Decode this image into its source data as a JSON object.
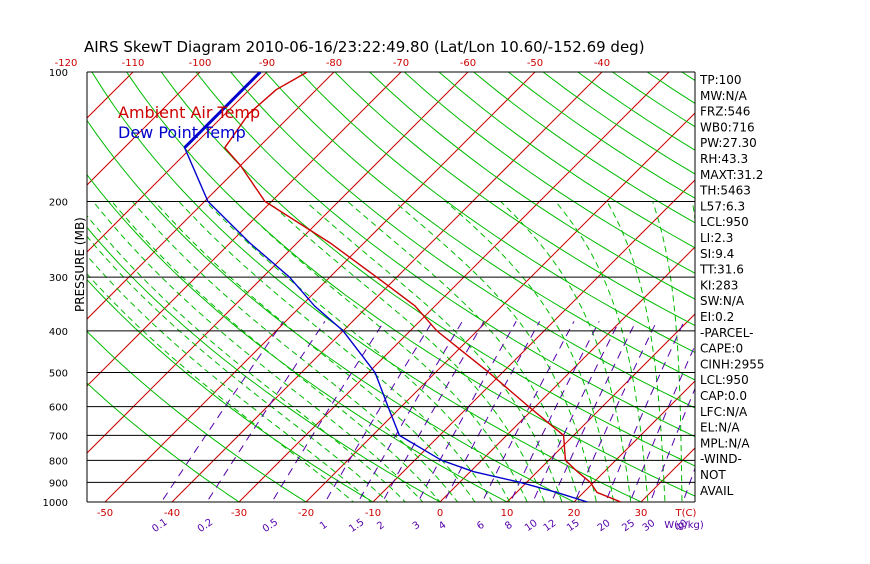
{
  "title": "AIRS SkewT Diagram 2010-06-16/23:22:49.80 (Lat/Lon 10.60/-152.69 deg)",
  "ylabel": "PRESSURE (MB)",
  "xlabel_unit": "T(C)",
  "mix_unit": "W(g/kg)",
  "legend": [
    {
      "label": "Ambient Air Temp",
      "color": "#cc0000"
    },
    {
      "label": "Dew Point Temp",
      "color": "#0000cc"
    }
  ],
  "colors": {
    "temp": "#cc0000",
    "dew": "#0000cc",
    "isotherm": "#cc0000",
    "dry_adiabat": "#00bb00",
    "moist_adiabat": "#00bb00",
    "mixing_ratio": "#5500aa",
    "isobar": "#000000"
  },
  "pressure_ticks": [
    "100",
    "200",
    "300",
    "400",
    "500",
    "600",
    "700",
    "800",
    "900",
    "1000"
  ],
  "top_temp_ticks": [
    "-120",
    "-110",
    "-100",
    "-90",
    "-80",
    "-70",
    "-60",
    "-50",
    "-40"
  ],
  "bottom_temp_ticks": [
    "-50",
    "-40",
    "-30",
    "-20",
    "-10",
    "0",
    "10",
    "20",
    "30"
  ],
  "mixing_ratio_ticks": [
    "0.1",
    "0.2",
    "0.5",
    "1",
    "1.5",
    "2",
    "3",
    "4",
    "6",
    "8",
    "10",
    "12",
    "15",
    "20",
    "25",
    "30",
    "40"
  ],
  "indices": [
    "TP:100",
    "MW:N/A",
    "FRZ:546",
    "WB0:716",
    "PW:27.30",
    "RH:43.3",
    "MAXT:31.2",
    "TH:5463",
    "L57:6.3",
    "LCL:950",
    "LI:2.3",
    "SI:9.4",
    "TT:31.6",
    "KI:283",
    "SW:N/A",
    "EI:0.2",
    "-PARCEL-",
    "CAPE:0",
    "CINH:2955",
    "LCL:950",
    "CAP:0.0",
    "LFC:N/A",
    "EL:N/A",
    "MPL:N/A",
    "-WIND-",
    "NOT",
    "AVAIL"
  ],
  "chart_data": {
    "type": "line",
    "title": "AIRS SkewT Diagram 2010-06-16/23:22:49.80 (Lat/Lon 10.60/-152.69 deg)",
    "ylabel": "PRESSURE (MB)",
    "xlabel": "T(C)",
    "y_scale": "log",
    "y_inverted": true,
    "ylim": [
      100,
      1000
    ],
    "xlim_bottom": [
      -53,
      40
    ],
    "xlim_top": [
      -123,
      -38
    ],
    "series": [
      {
        "name": "Ambient Air Temp",
        "points": [
          {
            "p": 100,
            "t": -84
          },
          {
            "p": 110,
            "t": -86
          },
          {
            "p": 125,
            "t": -86.5
          },
          {
            "p": 150,
            "t": -85
          },
          {
            "p": 165,
            "t": -80
          },
          {
            "p": 200,
            "t": -71
          },
          {
            "p": 250,
            "t": -55
          },
          {
            "p": 300,
            "t": -43
          },
          {
            "p": 350,
            "t": -33
          },
          {
            "p": 400,
            "t": -26
          },
          {
            "p": 500,
            "t": -12
          },
          {
            "p": 600,
            "t": -1
          },
          {
            "p": 700,
            "t": 8.5
          },
          {
            "p": 800,
            "t": 12.5
          },
          {
            "p": 850,
            "t": 16
          },
          {
            "p": 900,
            "t": 19.5
          },
          {
            "p": 950,
            "t": 22
          },
          {
            "p": 1000,
            "t": 27
          }
        ]
      },
      {
        "name": "Dew Point Temp",
        "points": [
          {
            "p": 100,
            "t": -91
          },
          {
            "p": 150,
            "t": -91
          },
          {
            "p": 200,
            "t": -79.5
          },
          {
            "p": 250,
            "t": -67
          },
          {
            "p": 300,
            "t": -56
          },
          {
            "p": 350,
            "t": -48
          },
          {
            "p": 400,
            "t": -40
          },
          {
            "p": 500,
            "t": -29
          },
          {
            "p": 600,
            "t": -22
          },
          {
            "p": 700,
            "t": -16
          },
          {
            "p": 800,
            "t": -6
          },
          {
            "p": 850,
            "t": 0.5
          },
          {
            "p": 900,
            "t": 9
          },
          {
            "p": 950,
            "t": 16
          },
          {
            "p": 1000,
            "t": 22
          }
        ]
      }
    ],
    "isotherms_c": [
      -130,
      -120,
      -110,
      -100,
      -90,
      -80,
      -70,
      -60,
      -50,
      -40,
      -30,
      -20,
      -10,
      0,
      10,
      20,
      30,
      40
    ],
    "mixing_ratios_gkg": [
      0.1,
      0.2,
      0.5,
      1,
      1.5,
      2,
      3,
      4,
      6,
      8,
      10,
      12,
      15,
      20,
      25,
      30,
      40
    ]
  }
}
